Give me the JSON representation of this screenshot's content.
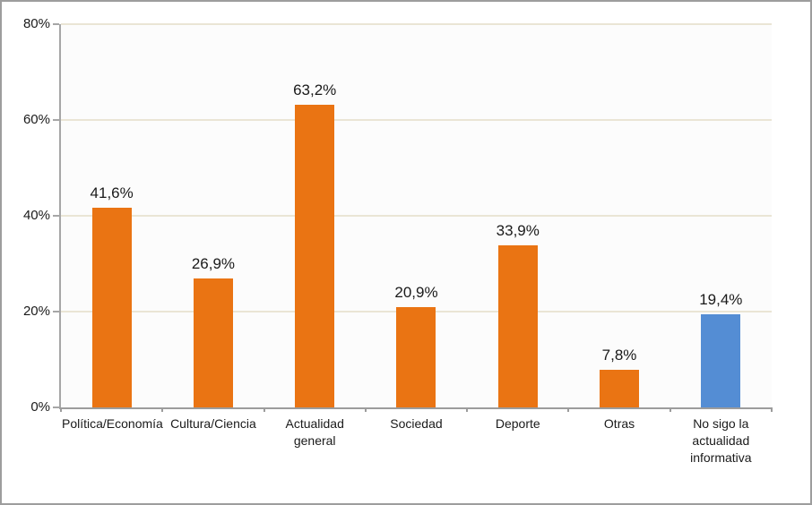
{
  "chart_data": {
    "type": "bar",
    "title": "",
    "xlabel": "",
    "ylabel": "",
    "categories": [
      "Política/Economía",
      "Cultura/Ciencia",
      "Actualidad general",
      "Sociedad",
      "Deporte",
      "Otras",
      "No sigo la actualidad informativa"
    ],
    "values": [
      41.6,
      26.9,
      63.2,
      20.9,
      33.9,
      7.8,
      19.4
    ],
    "value_labels": [
      "41,6%",
      "26,9%",
      "63,2%",
      "20,9%",
      "33,9%",
      "7,8%",
      "19,4%"
    ],
    "bar_colors": [
      "#ea7413",
      "#ea7413",
      "#ea7413",
      "#ea7413",
      "#ea7413",
      "#ea7413",
      "#548dd4"
    ],
    "ylim": [
      0,
      80
    ],
    "yticks": [
      0,
      20,
      40,
      60,
      80
    ],
    "ytick_labels": [
      "0%",
      "20%",
      "40%",
      "60%",
      "80%"
    ],
    "grid": true,
    "legend_position": "none"
  },
  "style_colors": {
    "gridline": "#eae5d5",
    "axis": "#a6a6a6",
    "plot_background": "#fcfcfc",
    "frame_border": "#9d9d9d",
    "text": "#1a1a1a"
  }
}
